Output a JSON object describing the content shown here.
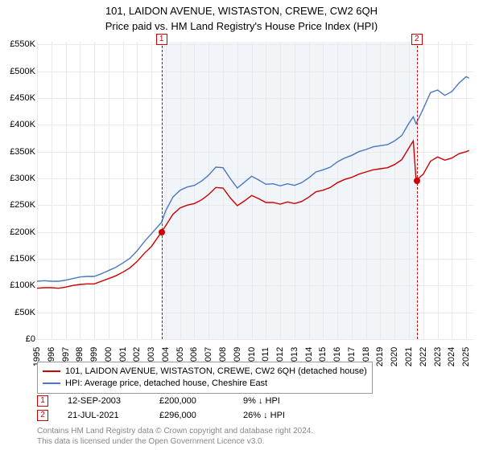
{
  "title": "101, LAIDON AVENUE, WISTASTON, CREWE, CW2 6QH",
  "subtitle": "Price paid vs. HM Land Registry's House Price Index (HPI)",
  "chart": {
    "type": "line",
    "background_color": "#ffffff",
    "grid_color": "#eaeaea",
    "shaded_band_color": "#e5ecf6",
    "ylim": [
      0,
      555000
    ],
    "ytick_step": 50000,
    "ytick_prefix": "£",
    "ytick_suffix": "K",
    "xlim": [
      1995,
      2025.5
    ],
    "xticks": [
      1995,
      1996,
      1997,
      1998,
      1999,
      2000,
      2001,
      2002,
      2003,
      2004,
      2005,
      2006,
      2007,
      2008,
      2009,
      2010,
      2011,
      2012,
      2013,
      2014,
      2015,
      2016,
      2017,
      2018,
      2019,
      2020,
      2021,
      2022,
      2023,
      2024,
      2025
    ],
    "series": [
      {
        "name": "property",
        "label": "101, LAIDON AVENUE, WISTASTON, CREWE, CW2 6QH (detached house)",
        "color": "#cc0000",
        "stroke_width": 1.4,
        "points": [
          [
            1995,
            95000
          ],
          [
            1995.5,
            96000
          ],
          [
            1996,
            96000
          ],
          [
            1996.5,
            95000
          ],
          [
            1997,
            97000
          ],
          [
            1997.5,
            100000
          ],
          [
            1998,
            102000
          ],
          [
            1998.5,
            103000
          ],
          [
            1999,
            103000
          ],
          [
            1999.5,
            108000
          ],
          [
            2000,
            113000
          ],
          [
            2000.5,
            118000
          ],
          [
            2001,
            125000
          ],
          [
            2001.5,
            133000
          ],
          [
            2002,
            145000
          ],
          [
            2002.5,
            160000
          ],
          [
            2003,
            173000
          ],
          [
            2003.7,
            200000
          ],
          [
            2004,
            212000
          ],
          [
            2004.5,
            233000
          ],
          [
            2005,
            245000
          ],
          [
            2005.5,
            250000
          ],
          [
            2006,
            253000
          ],
          [
            2006.5,
            260000
          ],
          [
            2007,
            270000
          ],
          [
            2007.5,
            283000
          ],
          [
            2008,
            282000
          ],
          [
            2008.5,
            264000
          ],
          [
            2009,
            249000
          ],
          [
            2009.5,
            258000
          ],
          [
            2010,
            268000
          ],
          [
            2010.5,
            262000
          ],
          [
            2011,
            255000
          ],
          [
            2011.5,
            255000
          ],
          [
            2012,
            252000
          ],
          [
            2012.5,
            256000
          ],
          [
            2013,
            253000
          ],
          [
            2013.5,
            257000
          ],
          [
            2014,
            265000
          ],
          [
            2014.5,
            275000
          ],
          [
            2015,
            278000
          ],
          [
            2015.5,
            283000
          ],
          [
            2016,
            292000
          ],
          [
            2016.5,
            298000
          ],
          [
            2017,
            302000
          ],
          [
            2017.5,
            308000
          ],
          [
            2018,
            312000
          ],
          [
            2018.5,
            316000
          ],
          [
            2019,
            318000
          ],
          [
            2019.5,
            320000
          ],
          [
            2020,
            326000
          ],
          [
            2020.5,
            335000
          ],
          [
            2021,
            357000
          ],
          [
            2021.3,
            370000
          ],
          [
            2021.5,
            296000
          ],
          [
            2022,
            308000
          ],
          [
            2022.5,
            332000
          ],
          [
            2023,
            340000
          ],
          [
            2023.5,
            334000
          ],
          [
            2024,
            338000
          ],
          [
            2024.5,
            346000
          ],
          [
            2025,
            350000
          ],
          [
            2025.2,
            352000
          ]
        ]
      },
      {
        "name": "hpi",
        "label": "HPI: Average price, detached house, Cheshire East",
        "color": "#4a77c4",
        "stroke_width": 1.4,
        "points": [
          [
            1995,
            108000
          ],
          [
            1995.5,
            109000
          ],
          [
            1996,
            108000
          ],
          [
            1996.5,
            108000
          ],
          [
            1997,
            110000
          ],
          [
            1997.5,
            113000
          ],
          [
            1998,
            116000
          ],
          [
            1998.5,
            117000
          ],
          [
            1999,
            117000
          ],
          [
            1999.5,
            122000
          ],
          [
            2000,
            128000
          ],
          [
            2000.5,
            134000
          ],
          [
            2001,
            142000
          ],
          [
            2001.5,
            151000
          ],
          [
            2002,
            165000
          ],
          [
            2002.5,
            182000
          ],
          [
            2003,
            197000
          ],
          [
            2003.7,
            218000
          ],
          [
            2004,
            240000
          ],
          [
            2004.5,
            265000
          ],
          [
            2005,
            278000
          ],
          [
            2005.5,
            284000
          ],
          [
            2006,
            287000
          ],
          [
            2006.5,
            295000
          ],
          [
            2007,
            306000
          ],
          [
            2007.5,
            321000
          ],
          [
            2008,
            320000
          ],
          [
            2008.5,
            300000
          ],
          [
            2009,
            282000
          ],
          [
            2009.5,
            293000
          ],
          [
            2010,
            304000
          ],
          [
            2010.5,
            297000
          ],
          [
            2011,
            289000
          ],
          [
            2011.5,
            290000
          ],
          [
            2012,
            286000
          ],
          [
            2012.5,
            290000
          ],
          [
            2013,
            287000
          ],
          [
            2013.5,
            292000
          ],
          [
            2014,
            301000
          ],
          [
            2014.5,
            312000
          ],
          [
            2015,
            316000
          ],
          [
            2015.5,
            321000
          ],
          [
            2016,
            331000
          ],
          [
            2016.5,
            338000
          ],
          [
            2017,
            343000
          ],
          [
            2017.5,
            350000
          ],
          [
            2018,
            354000
          ],
          [
            2018.5,
            359000
          ],
          [
            2019,
            361000
          ],
          [
            2019.5,
            363000
          ],
          [
            2020,
            370000
          ],
          [
            2020.5,
            380000
          ],
          [
            2021,
            403000
          ],
          [
            2021.3,
            415000
          ],
          [
            2021.5,
            402000
          ],
          [
            2022,
            430000
          ],
          [
            2022.5,
            460000
          ],
          [
            2023,
            465000
          ],
          [
            2023.5,
            455000
          ],
          [
            2024,
            462000
          ],
          [
            2024.5,
            478000
          ],
          [
            2025,
            490000
          ],
          [
            2025.2,
            487000
          ]
        ]
      }
    ],
    "shaded_bands": [
      {
        "x_start": 2003.7,
        "x_end": 2021.55
      }
    ],
    "markers": [
      {
        "id": "1",
        "x": 2003.7,
        "price_y": 200000
      },
      {
        "id": "2",
        "x": 2021.55,
        "price_y": 296000
      }
    ]
  },
  "legend": {
    "items": [
      {
        "color": "#cc0000",
        "label": "101, LAIDON AVENUE, WISTASTON, CREWE, CW2 6QH (detached house)"
      },
      {
        "color": "#4a77c4",
        "label": "HPI: Average price, detached house, Cheshire East"
      }
    ]
  },
  "transactions": [
    {
      "id": "1",
      "date": "12-SEP-2003",
      "price": "£200,000",
      "delta": "9% ↓ HPI"
    },
    {
      "id": "2",
      "date": "21-JUL-2021",
      "price": "£296,000",
      "delta": "26% ↓ HPI"
    }
  ],
  "attribution": {
    "line1": "Contains HM Land Registry data © Crown copyright and database right 2024.",
    "line2": "This data is licensed under the Open Government Licence v3.0."
  },
  "styling": {
    "marker_border_color": "#cc0000",
    "label_fontsize": 11,
    "title_fontsize": 13
  }
}
